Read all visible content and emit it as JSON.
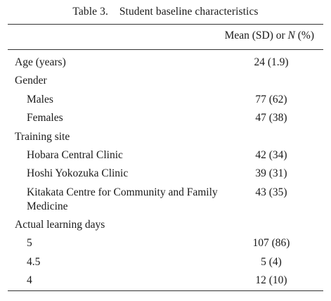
{
  "caption": "Table 3.    Student baseline characteristics",
  "header": {
    "col_prefix": "Mean (SD) or ",
    "col_n": "N",
    "col_suffix": " (%)"
  },
  "rows": [
    {
      "label": "Age (years)",
      "value": "24 (1.9)",
      "indent": false
    },
    {
      "label": "Gender",
      "value": "",
      "indent": false
    },
    {
      "label": "Males",
      "value": "77 (62)",
      "indent": true
    },
    {
      "label": "Females",
      "value": "47 (38)",
      "indent": true
    },
    {
      "label": "Training site",
      "value": "",
      "indent": false
    },
    {
      "label": "Hobara Central Clinic",
      "value": "42 (34)",
      "indent": true
    },
    {
      "label": "Hoshi Yokozuka Clinic",
      "value": "39 (31)",
      "indent": true
    },
    {
      "label": "Kitakata Centre for Community and Family Medicine",
      "value": "43 (35)",
      "indent": true
    },
    {
      "label": "Actual learning days",
      "value": "",
      "indent": false
    },
    {
      "label": "5",
      "value": "107 (86)",
      "indent": true
    },
    {
      "label": "4.5",
      "value": "5 (4)",
      "indent": true
    },
    {
      "label": "4",
      "value": "12 (10)",
      "indent": true
    }
  ]
}
